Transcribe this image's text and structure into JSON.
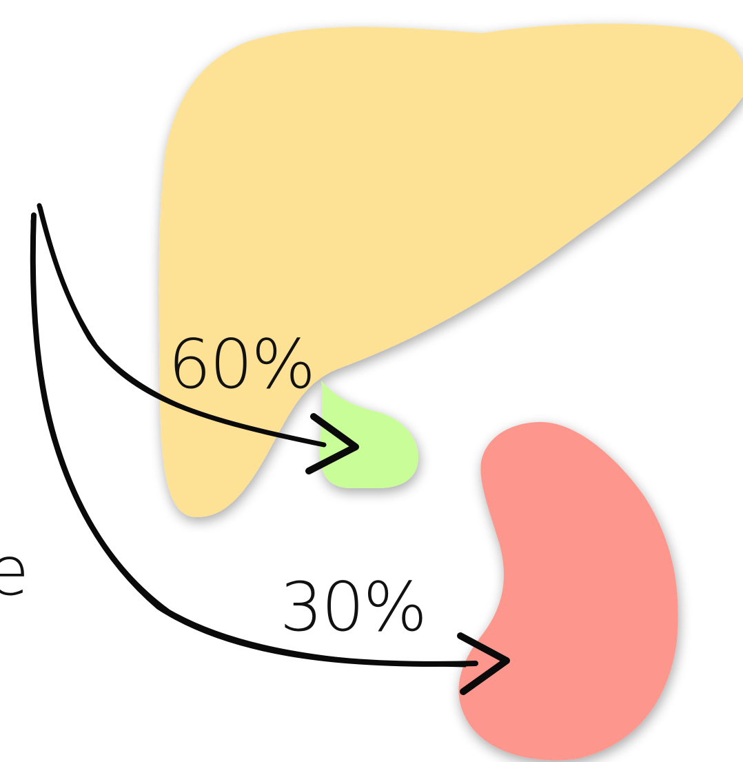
{
  "labels": {
    "cut_left": "e",
    "flow_upper": "60%",
    "flow_lower": "30%"
  },
  "colors": {
    "background": "#ffffff",
    "large_organ": "#fde194",
    "small_organ": "#c8fd98",
    "bean_organ": "#fd968d",
    "arrows": "#0a0a0a",
    "text": "#111111"
  }
}
